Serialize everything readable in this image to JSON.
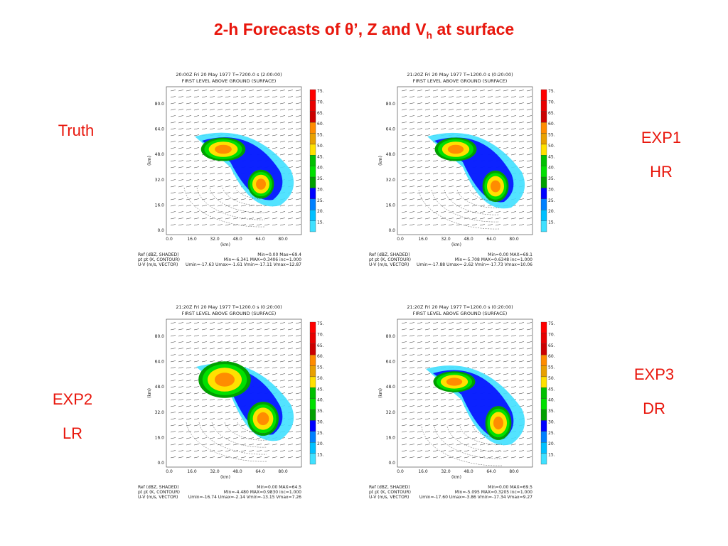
{
  "title": {
    "prefix": "2-h Forecasts of ",
    "theta": "θ’, Z and V",
    "sub": "h",
    "suffix": " at surface"
  },
  "labels": {
    "truth": "Truth",
    "exp1": [
      "EXP1",
      "HR"
    ],
    "exp2": [
      "EXP2",
      "LR"
    ],
    "exp3": [
      "EXP3",
      "DR"
    ]
  },
  "colorbar_ticks": [
    "75.",
    "70.",
    "65.",
    "60.",
    "55.",
    "50.",
    "45.",
    "40.",
    "35.",
    "30.",
    "25.",
    "20.",
    "15."
  ],
  "colorbar_colors": [
    "#ff0000",
    "#e80000",
    "#cc0000",
    "#ff8c00",
    "#e8a000",
    "#ffe000",
    "#00c000",
    "#00e000",
    "#00a000",
    "#0000ff",
    "#0080ff",
    "#00c0ff",
    "#40e0ff"
  ],
  "x_ticks": [
    "0.0",
    "16.0",
    "32.0",
    "48.0",
    "64.0",
    "80.0"
  ],
  "y_ticks": [
    "80.0",
    "64.0",
    "48.0",
    "32.0",
    "16.0",
    "0.0"
  ],
  "axis_unit": "(km)",
  "panels": [
    {
      "header1": "20:00Z Fri 20 May 1977    T=7200.0 s (2:00:00)",
      "header2": "FIRST LEVEL ABOVE GROUND (SURFACE)",
      "footer_left": [
        "Ref (dBZ, SHADED)",
        "pt pt (K, CONTOUR)",
        "U-V (m/s, VECTOR)"
      ],
      "footer_right": [
        "Min=0.00 Max=69.4",
        "Min=-6.341 MAX=0.3406 inc=1.000",
        "Umin=-17.63 Umax=-1.61 Vmin=-17.11 Vmax=12.87"
      ]
    },
    {
      "header1": "21:20Z Fri 20 May 1977    T=1200.0 s (0:20:00)",
      "header2": "FIRST LEVEL ABOVE GROUND (SURFACE)",
      "footer_left": [
        "Ref (dBZ, SHADED)",
        "pt pt (K, CONTOUR)",
        "U-V (m/s, VECTOR)"
      ],
      "footer_right": [
        "Min=0.00 MAX=69.1",
        "Min=-5.708 MAX=0.6348 inc=1.000",
        "Umin=-17.88 Umax=-2.62 Vmin=-17.73 Vmax=10.06"
      ]
    },
    {
      "header1": "21:20Z Fri 20 May 1977    T=1200.0 s (0:20:00)",
      "header2": "FIRST LEVEL ABOVE GROUND (SURFACE)",
      "footer_left": [
        "Ref (dBZ, SHADED)",
        "pt pt (K, CONTOUR)",
        "U-V (m/s, VECTOR)"
      ],
      "footer_right": [
        "Min=0.00 MAX=64.5",
        "Min=-4.480 MAX=0.9830 inc=1.000",
        "Umin=-16.74 Umax=-2.14 Vmin=-13.15 Vmax=7.26"
      ]
    },
    {
      "header1": "21:20Z Fri 20 May 1977    T=1200.0 s (0:20:00)",
      "header2": "FIRST LEVEL ABOVE GROUND (SURFACE)",
      "footer_left": [
        "Ref (dBZ, SHADED)",
        "pt pt (K, CONTOUR)",
        "U-V (m/s, VECTOR)"
      ],
      "footer_right": [
        "Min=0.00 MAX=69.5",
        "Min=-5.095 MAX=0.3205 inc=1.000",
        "Umin=-17.60 Umax=-3.86 Vmin=-17.34 Vmax=9.27"
      ]
    }
  ]
}
